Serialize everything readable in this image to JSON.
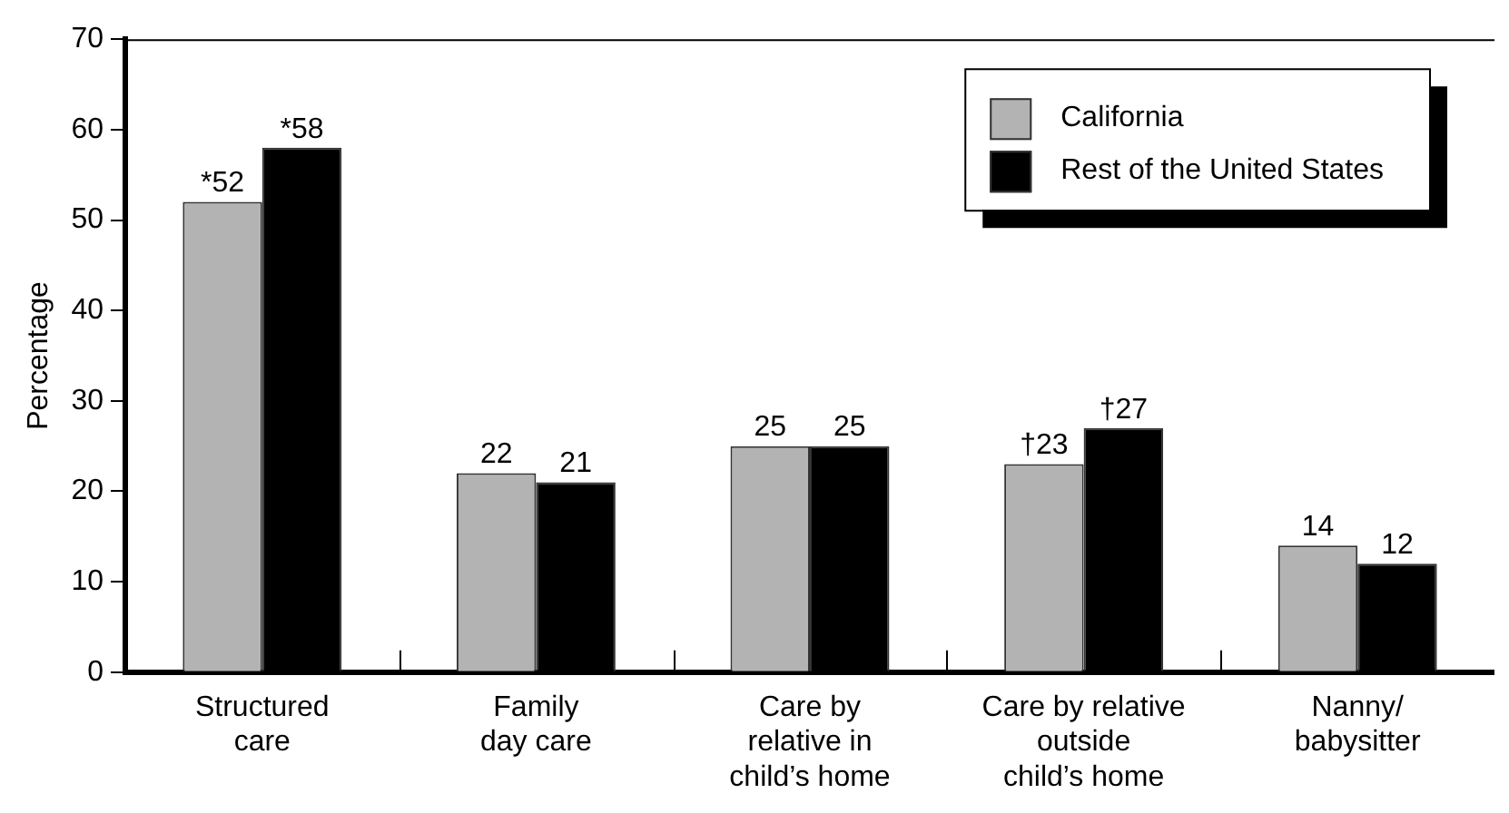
{
  "chart_data": {
    "type": "bar",
    "ylabel": "Percentage",
    "categories": [
      "Structured\ncare",
      "Family\nday care",
      "Care by\nrelative in\nchild’s home",
      "Care by relative\noutside\nchild’s home",
      "Nanny/\nbabysitter"
    ],
    "series": [
      {
        "name": "California",
        "color": "#b3b3b3",
        "values": [
          52,
          22,
          25,
          23,
          14
        ],
        "value_labels": [
          "*52",
          "22",
          "25",
          "†23",
          "14"
        ]
      },
      {
        "name": "Rest of the United States",
        "color": "#000000",
        "values": [
          58,
          21,
          25,
          27,
          12
        ],
        "value_labels": [
          "*58",
          "21",
          "25",
          "†27",
          "12"
        ]
      }
    ],
    "ylim": [
      0,
      70
    ],
    "yticks": [
      0,
      10,
      20,
      30,
      40,
      50,
      60,
      70
    ],
    "legend": "top right"
  }
}
